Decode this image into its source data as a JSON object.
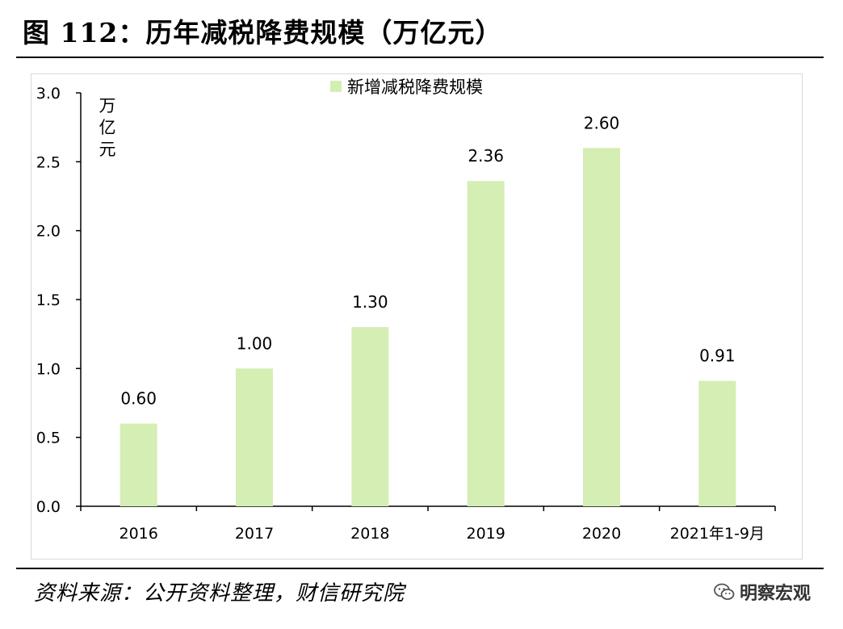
{
  "figure_title": "图 112：历年减税降费规模（万亿元）",
  "source_note": "资料来源：公开资料整理，财信研究院",
  "watermark": {
    "icon": "wechat-icon",
    "text": "明察宏观"
  },
  "chart_data": {
    "type": "bar",
    "title": "",
    "categories": [
      "2016",
      "2017",
      "2018",
      "2019",
      "2020",
      "2021年1-9月"
    ],
    "series": [
      {
        "name": "新增减税降费规模",
        "values": [
          0.6,
          1.0,
          1.3,
          2.36,
          2.6,
          0.91
        ],
        "color": "#d5eeb3"
      }
    ],
    "data_labels": [
      "0.60",
      "1.00",
      "1.30",
      "2.36",
      "2.60",
      "0.91"
    ],
    "ylabel": "万亿元",
    "ylim": [
      0,
      3.0
    ],
    "yticks": [
      0.0,
      0.5,
      1.0,
      1.5,
      2.0,
      2.5,
      3.0
    ],
    "ytick_labels": [
      "0.0",
      "0.5",
      "1.0",
      "1.5",
      "2.0",
      "2.5",
      "3.0"
    ],
    "legend_position": "top-center",
    "grid": false
  }
}
